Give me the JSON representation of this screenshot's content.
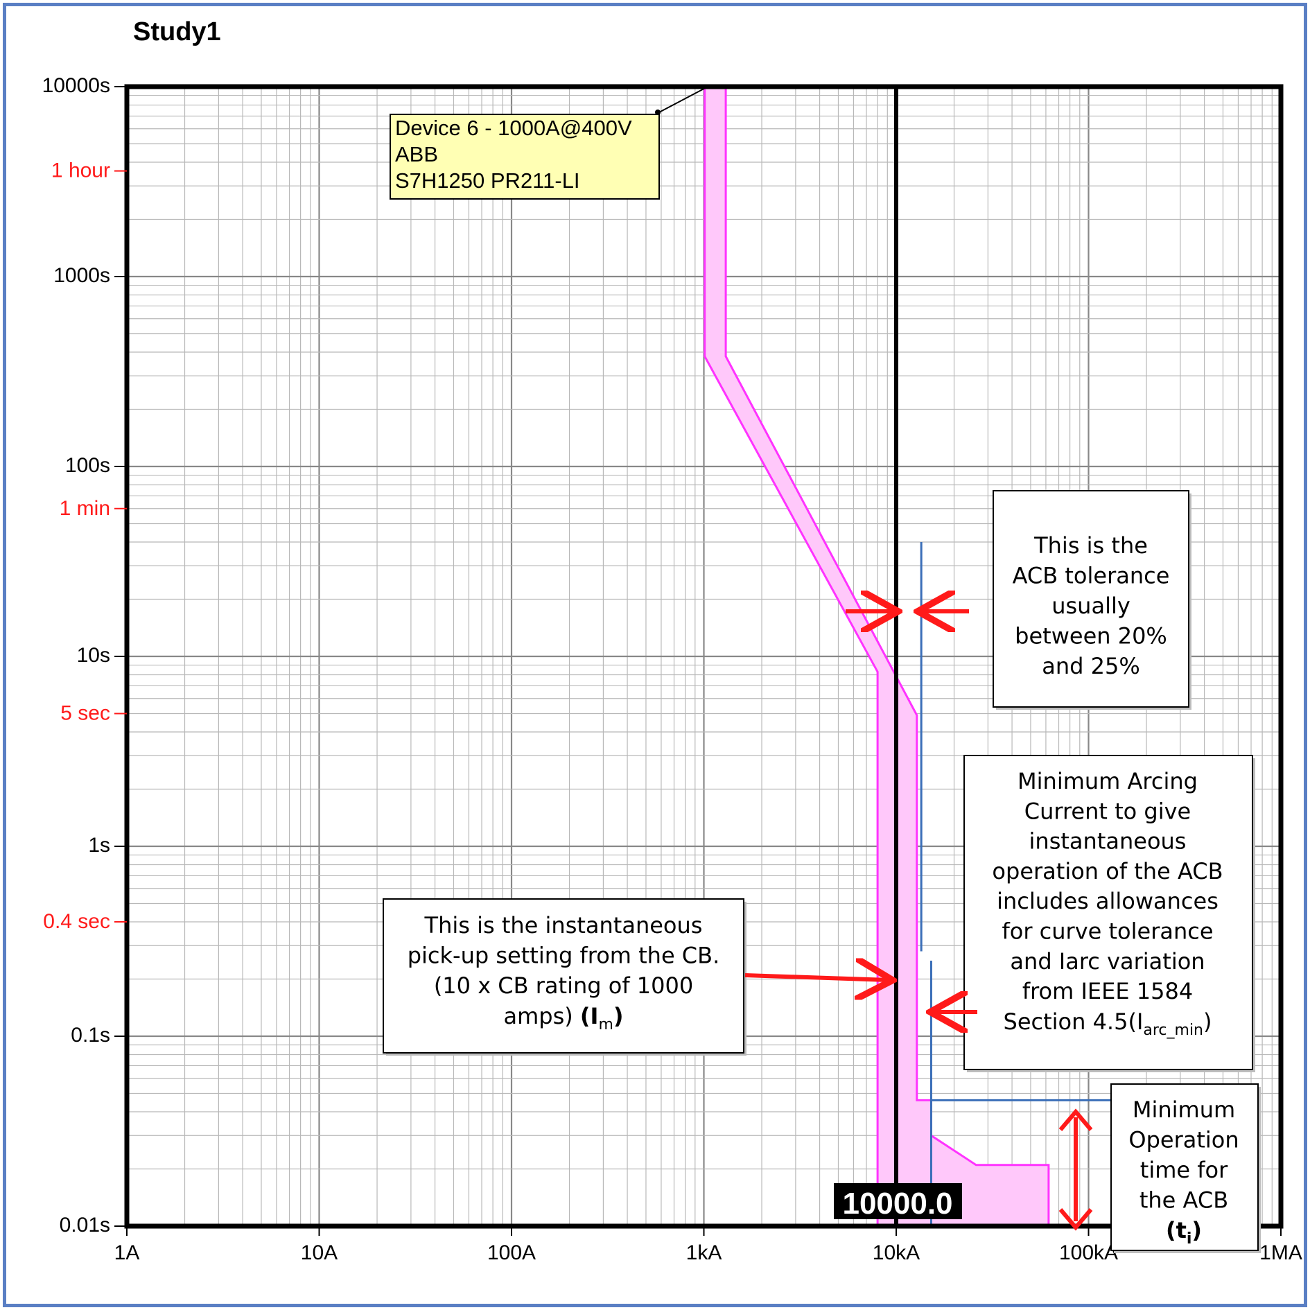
{
  "chart_data": {
    "type": "line",
    "title": "Study1",
    "xscale": "log",
    "yscale": "log",
    "xlim": [
      1,
      1000000
    ],
    "ylim": [
      0.01,
      10000
    ],
    "grid": true,
    "x_ticks": [
      {
        "value": 1,
        "label": "1A"
      },
      {
        "value": 10,
        "label": "10A"
      },
      {
        "value": 100,
        "label": "100A"
      },
      {
        "value": 1000,
        "label": "1kA"
      },
      {
        "value": 10000,
        "label": "10kA"
      },
      {
        "value": 100000,
        "label": "100kA"
      },
      {
        "value": 1000000,
        "label": "1MA"
      }
    ],
    "y_ticks": [
      {
        "value": 10000,
        "label": "10000s"
      },
      {
        "value": 1000,
        "label": "1000s"
      },
      {
        "value": 100,
        "label": "100s"
      },
      {
        "value": 10,
        "label": "10s"
      },
      {
        "value": 1,
        "label": "1s"
      },
      {
        "value": 0.1,
        "label": "0.1s"
      },
      {
        "value": 0.01,
        "label": "0.01s"
      }
    ],
    "y_ref_ticks": [
      {
        "value": 3600,
        "label": "1 hour"
      },
      {
        "value": 60,
        "label": "1 min"
      },
      {
        "value": 5,
        "label": "5 sec"
      },
      {
        "value": 0.4,
        "label": "0.4 sec"
      }
    ],
    "series": [
      {
        "color": "#ff33ff",
        "fill": "#ffc8fa",
        "left_edge": [
          [
            1010,
            10000
          ],
          [
            1010,
            380
          ],
          [
            8000,
            8.3
          ],
          [
            8000,
            0.01
          ]
        ],
        "right_edge": [
          [
            1300,
            10000
          ],
          [
            1300,
            380
          ],
          [
            12800,
            4.9
          ],
          [
            12800,
            0.046
          ],
          [
            15200,
            0.046
          ],
          [
            15200,
            0.03
          ],
          [
            26000,
            0.021
          ],
          [
            62000,
            0.021
          ],
          [
            62000,
            0.01
          ]
        ]
      }
    ],
    "device_label": {
      "lines": [
        "Device 6 - 1000A@400V",
        "ABB",
        "S7H1250 PR211-LI"
      ],
      "leader_point": [
        1050,
        10000
      ]
    },
    "cursor": {
      "x": 10000,
      "label": "10000.0"
    },
    "reference_lines": {
      "tolerance_line": {
        "x": 13500,
        "y_range": [
          0.28,
          40
        ]
      },
      "arc_min_line": {
        "x": 15200,
        "y_range": [
          0.01,
          0.25
        ]
      },
      "op_time_line": {
        "y": 0.046,
        "x_range": [
          15200,
          100000
        ]
      }
    },
    "annotations": [
      {
        "text_lines": [
          "This is the",
          "ACB tolerance",
          "usually",
          "between 20%",
          "and 25%"
        ]
      },
      {
        "text_lines": [
          "Minimum Arcing",
          "Current to give",
          "instantaneous",
          "operation of the ACB",
          "includes allowances",
          "for curve tolerance",
          "and Iarc variation",
          "from IEEE 1584"
        ],
        "last_line": "Section 4.5(I",
        "sub": "arc_min",
        "after": ")"
      },
      {
        "text_lines": [
          "This is the instantaneous",
          "pick-up setting from the CB.",
          "(10 x CB rating of 1000"
        ],
        "last_line": "amps) ",
        "bold": "(I",
        "sub": "m",
        "after": ")"
      },
      {
        "text_lines": [
          "Minimum",
          "Operation",
          "time for",
          "the ACB"
        ],
        "bold": "(t",
        "sub": "i",
        "after": ")"
      }
    ],
    "colors": {
      "axis": "#000000",
      "grid": "#aaaaaa",
      "ref_tick": "#ff1a1a",
      "arrow": "#ff1a1a",
      "ref_line": "#3a6eb8",
      "label_bg": "#ffffb4"
    }
  }
}
